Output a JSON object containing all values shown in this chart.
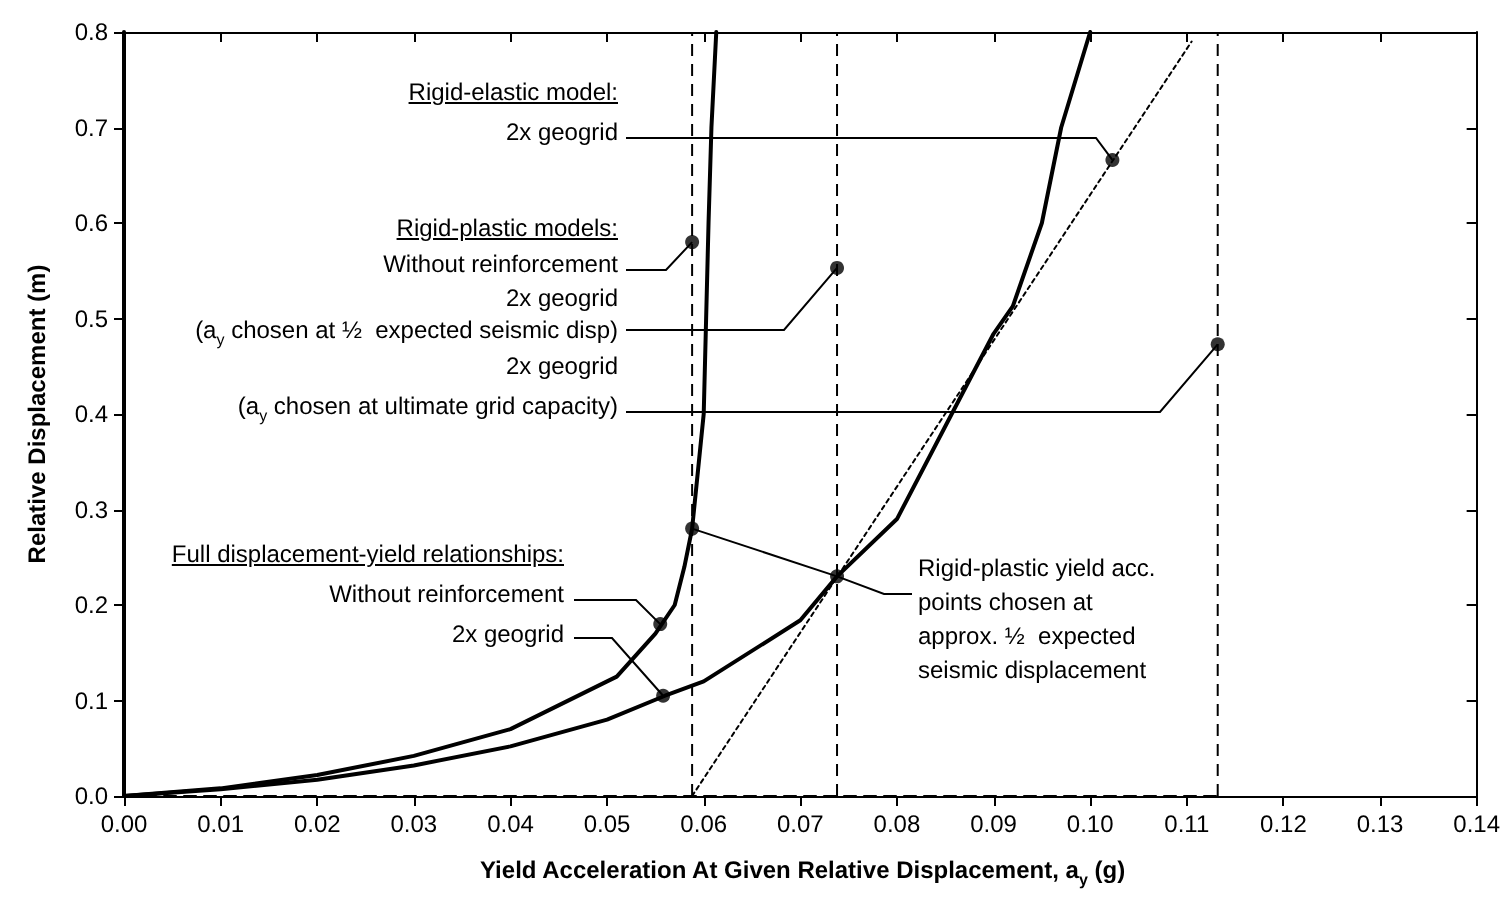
{
  "chart_data": {
    "type": "line",
    "xlabel": "Yield Acceleration At Given Relative Displacement, a$_{y}$ (g)",
    "ylabel": "Relative Displacement (m)",
    "xlim": [
      0,
      0.14
    ],
    "xticks": [
      {
        "value": 0,
        "label": "0.00"
      },
      {
        "value": 0.01,
        "label": "0.01"
      },
      {
        "value": 0.02,
        "label": "0.02"
      },
      {
        "value": 0.03,
        "label": "0.03"
      },
      {
        "value": 0.04,
        "label": "0.04"
      },
      {
        "value": 0.05,
        "label": "0.05"
      },
      {
        "value": 0.06,
        "label": "0.06"
      },
      {
        "value": 0.07,
        "label": "0.07"
      },
      {
        "value": 0.08,
        "label": "0.08"
      },
      {
        "value": 0.09,
        "label": "0.09"
      },
      {
        "value": 0.1,
        "label": "0.10"
      },
      {
        "value": 0.11,
        "label": "0.11"
      },
      {
        "value": 0.12,
        "label": "0.12"
      },
      {
        "value": 0.13,
        "label": "0.13"
      },
      {
        "value": 0.14,
        "label": "0.14"
      }
    ],
    "ylim": [
      0,
      0.8
    ],
    "yticks": [
      {
        "value": 0,
        "label": "0.0"
      },
      {
        "value": 0.1,
        "label": "0.1"
      },
      {
        "value": 0.2,
        "label": "0.2"
      },
      {
        "value": 0.3,
        "label": "0.3"
      },
      {
        "value": 0.4,
        "label": "0.4"
      },
      {
        "value": 0.5,
        "label": "0.5"
      },
      {
        "value": 0.6,
        "label": "0.6"
      },
      {
        "value": 0.7,
        "label": "0.7"
      },
      {
        "value": 0.8,
        "label": "0.8"
      }
    ],
    "grid": false,
    "ref_lines": [
      {
        "axis": "x",
        "value": 0.0588,
        "color": "#000000",
        "line_style": "dashed"
      },
      {
        "axis": "x",
        "value": 0.0738,
        "color": "#000000",
        "line_style": "dashed"
      },
      {
        "axis": "x",
        "value": 0.1132,
        "color": "#000000",
        "line_style": "dashed"
      }
    ],
    "series": [
      {
        "type": "line",
        "color": "#000000",
        "line_style": "solid",
        "x": [
          0,
          0.01,
          0.02,
          0.03,
          0.04,
          0.05,
          0.051,
          0.055,
          0.057,
          0.058,
          0.0588,
          0.0595,
          0.06,
          0.0605,
          0.0608,
          0.0613
        ],
        "values": [
          0,
          0.008,
          0.022,
          0.042,
          0.07,
          0.12,
          0.125,
          0.17,
          0.2,
          0.24,
          0.28,
          0.35,
          0.4,
          0.6,
          0.7,
          0.8
        ]
      },
      {
        "type": "line",
        "color": "#000000",
        "line_style": "solid",
        "x": [
          0,
          0.01,
          0.02,
          0.03,
          0.04,
          0.05,
          0.056,
          0.06,
          0.07,
          0.0738,
          0.08,
          0.09,
          0.092,
          0.095,
          0.097,
          0.1
        ],
        "values": [
          0,
          0.007,
          0.017,
          0.032,
          0.052,
          0.08,
          0.105,
          0.12,
          0.184,
          0.23,
          0.29,
          0.484,
          0.513,
          0.6,
          0.7,
          0.8
        ]
      },
      {
        "type": "line",
        "color": "#000000",
        "line_style": "dotted",
        "x": [
          0.0588,
          0.1105
        ],
        "values": [
          0,
          0.79
        ]
      },
      {
        "type": "line",
        "color": "#000000",
        "line_style": "dashed",
        "x": [
          0,
          0.1132
        ],
        "values": [
          0,
          0
        ]
      },
      {
        "type": "scatter",
        "color": "#000000",
        "marker": "circle",
        "x": [
          0.1023,
          0.0588,
          0.0738,
          0.1132,
          0.0555,
          0.0558,
          0.0738,
          0.0588
        ],
        "values": [
          0.666,
          0.58,
          0.553,
          0.473,
          0.18,
          0.105,
          0.23,
          0.28
        ]
      }
    ],
    "annotations": [
      "Rigid-elastic model:",
      {
        "text": "2x geogrid",
        "x": 0.1023,
        "y": 0.666
      },
      "Rigid-plastic models:",
      {
        "text": "Without reinforcement",
        "x": 0.0588,
        "y": 0.58
      },
      "2x geogrid",
      {
        "text": "(a$_{y}$ chosen at ½  expected seismic disp)",
        "x": 0.0738,
        "y": 0.553
      },
      "2x geogrid",
      {
        "text": "(a$_{y}$ chosen at ultimate grid capacity)",
        "x": 0.1132,
        "y": 0.473
      },
      "Full displacement-yield relationships:",
      {
        "text": "Without reinforcement",
        "x": 0.0555,
        "y": 0.18
      },
      {
        "text": "2x geogrid",
        "x": 0.0558,
        "y": 0.105
      },
      {
        "text": "Rigid-plastic yield acc.\npoints chosen at\napprox. ½  expected\nseismic displacement",
        "x": 0.0738,
        "y": 0.23
      }
    ]
  }
}
